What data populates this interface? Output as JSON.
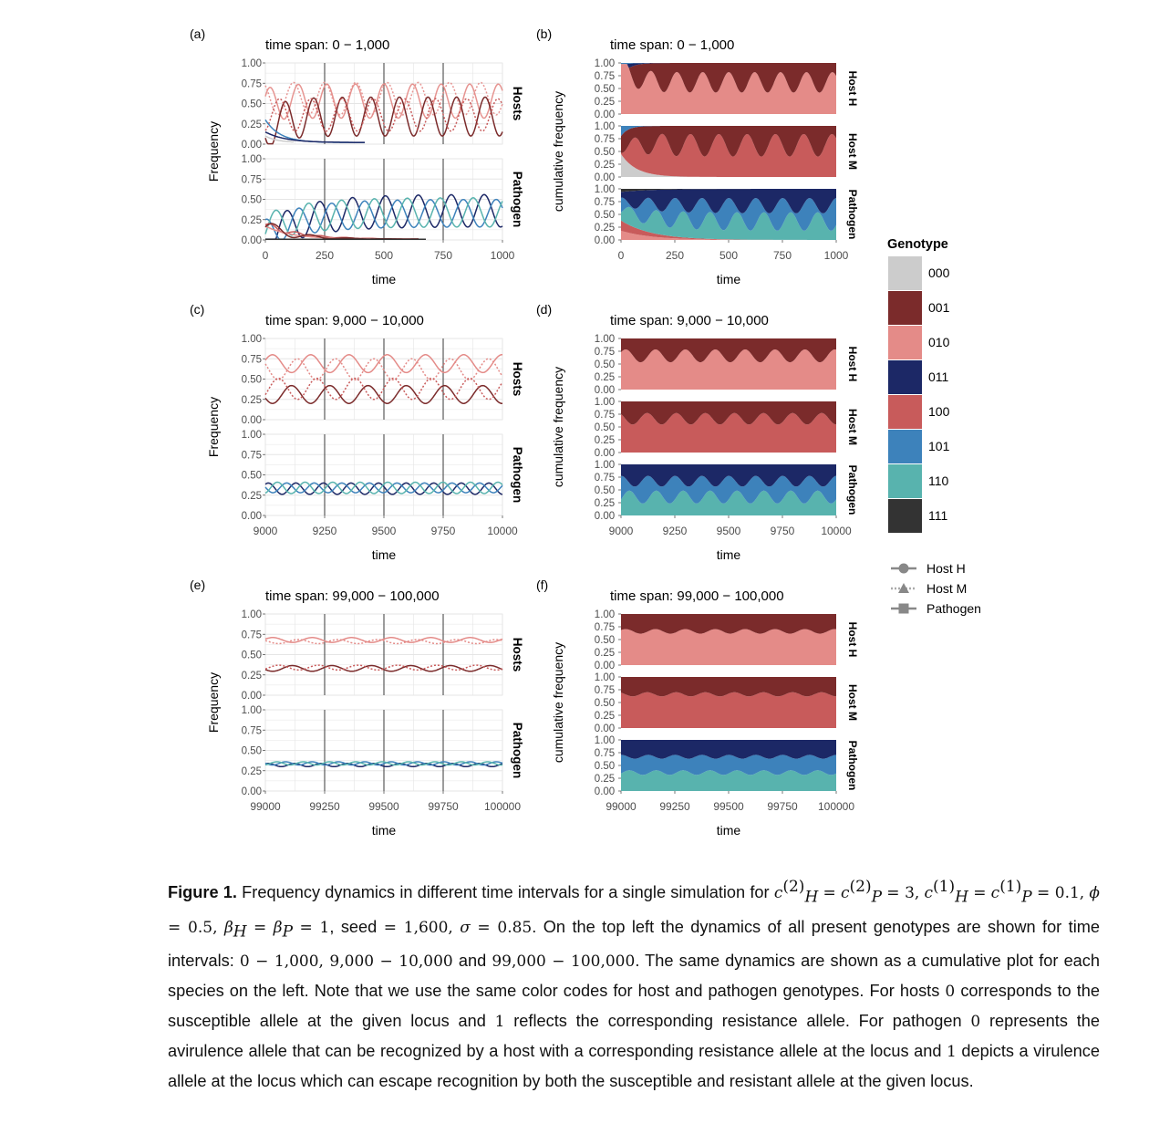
{
  "figure": {
    "panels": [
      {
        "label": "(a)",
        "kind": "frequency",
        "title": "time span: 0 − 1,000",
        "xticks": [
          "0",
          "250",
          "500",
          "750",
          "1000"
        ],
        "xrange": [
          0,
          1000
        ],
        "ylabel": "Frequency",
        "xlabel": "time",
        "facets": [
          "Hosts",
          "Pathogen"
        ]
      },
      {
        "label": "(b)",
        "kind": "cumulative",
        "title": "time span: 0 − 1,000",
        "xticks": [
          "0",
          "250",
          "500",
          "750",
          "1000"
        ],
        "xrange": [
          0,
          1000
        ],
        "ylabel": "cumulative frequency",
        "xlabel": "time",
        "facets": [
          "Host H",
          "Host M",
          "Pathogen"
        ]
      },
      {
        "label": "(c)",
        "kind": "frequency",
        "title": "time span: 9,000 − 10,000",
        "xticks": [
          "9000",
          "9250",
          "9500",
          "9750",
          "10000"
        ],
        "xrange": [
          9000,
          10000
        ],
        "ylabel": "Frequency",
        "xlabel": "time",
        "facets": [
          "Hosts",
          "Pathogen"
        ]
      },
      {
        "label": "(d)",
        "kind": "cumulative",
        "title": "time span: 9,000 − 10,000",
        "xticks": [
          "9000",
          "9250",
          "9500",
          "9750",
          "10000"
        ],
        "xrange": [
          9000,
          10000
        ],
        "ylabel": "cumulative frequency",
        "xlabel": "time",
        "facets": [
          "Host H",
          "Host M",
          "Pathogen"
        ]
      },
      {
        "label": "(e)",
        "kind": "frequency",
        "title": "time span: 99,000 − 100,000",
        "xticks": [
          "99000",
          "99250",
          "99500",
          "99750",
          "100000"
        ],
        "xrange": [
          99000,
          100000
        ],
        "ylabel": "Frequency",
        "xlabel": "time",
        "facets": [
          "Hosts",
          "Pathogen"
        ]
      },
      {
        "label": "(f)",
        "kind": "cumulative",
        "title": "time span: 99,000 − 100,000",
        "xticks": [
          "99000",
          "99250",
          "99500",
          "99750",
          "100000"
        ],
        "xrange": [
          99000,
          100000
        ],
        "ylabel": "cumulative frequency",
        "xlabel": "time",
        "facets": [
          "Host H",
          "Host M",
          "Pathogen"
        ]
      }
    ],
    "freq_yticks": [
      "0.00",
      "0.25",
      "0.50",
      "0.75",
      "1.00"
    ],
    "legend": {
      "title": "Genotype",
      "genotypes": [
        {
          "code": "000",
          "color": "#cccccc"
        },
        {
          "code": "001",
          "color": "#7b2b2b"
        },
        {
          "code": "010",
          "color": "#e48b88"
        },
        {
          "code": "011",
          "color": "#1c2866"
        },
        {
          "code": "100",
          "color": "#c85b5b"
        },
        {
          "code": "101",
          "color": "#3d82bb"
        },
        {
          "code": "110",
          "color": "#58b3ae"
        },
        {
          "code": "111",
          "color": "#333333"
        }
      ],
      "species": [
        "Host H",
        "Host M",
        "Pathogen"
      ]
    }
  },
  "caption": {
    "label": "Figure 1.",
    "intro": "Frequency dynamics in different time intervals for a single simulation for",
    "p1b": ", seed",
    "p1c": ". On the top left the dynamics of all present genotypes are shown for time intervals:",
    "and": "and",
    "p2": ". The same dynamics are shown as a cumulative plot for each species on the left. Note that we use the same color codes for host and pathogen genotypes. For hosts",
    "p3": "corresponds to the susceptible allele at the given locus and",
    "p4": "reflects the corresponding resistance allele. For pathogen",
    "p5": "represents the avirulence allele that can be recognized by a host with a corresponding resistance allele at the locus and",
    "p6": "depicts a virulence allele at the locus which can escape recognition by both the susceptible and resistant allele at the given locus."
  }
}
